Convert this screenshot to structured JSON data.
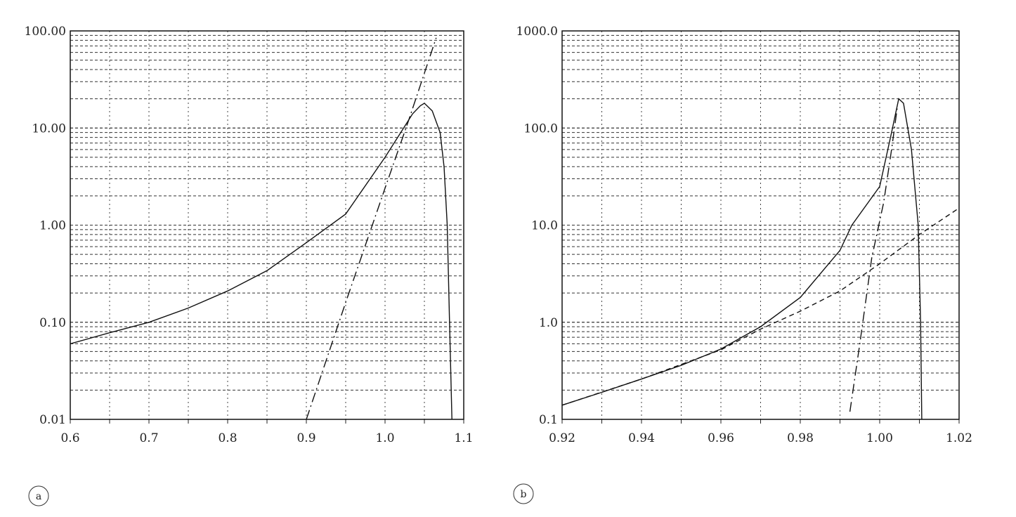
{
  "chart_data": [
    {
      "type": "line",
      "panel_label": "a",
      "yscale": "log",
      "xlim": [
        0.6,
        1.1
      ],
      "ylim": [
        0.01,
        100
      ],
      "xticks": [
        "0.6",
        "0.7",
        "0.8",
        "0.9",
        "1.0",
        "1.1"
      ],
      "xtick_values": [
        0.6,
        0.7,
        0.8,
        0.9,
        1.0,
        1.1
      ],
      "yticks": [
        "0.01",
        "0.10",
        "1.00",
        "10.00",
        "100.00"
      ],
      "ytick_values": [
        0.01,
        0.1,
        1,
        10,
        100
      ],
      "grid": true,
      "series": [
        {
          "name": "solid",
          "style": "solid",
          "x": [
            0.6,
            0.65,
            0.7,
            0.75,
            0.8,
            0.85,
            0.9,
            0.95,
            1.0,
            1.02,
            1.035,
            1.045,
            1.05,
            1.06,
            1.07,
            1.075,
            1.079,
            1.082,
            1.085
          ],
          "y": [
            0.06,
            0.078,
            0.1,
            0.14,
            0.21,
            0.34,
            0.66,
            1.3,
            5,
            9,
            14,
            17,
            18,
            15,
            9,
            4,
            1,
            0.1,
            0.01
          ]
        },
        {
          "name": "dash-dot",
          "style": "dashdot",
          "x": [
            0.9,
            0.95,
            1.0,
            1.03,
            1.065
          ],
          "y": [
            0.01,
            0.16,
            2.4,
            12,
            85
          ]
        }
      ]
    },
    {
      "type": "line",
      "panel_label": "b",
      "yscale": "log",
      "xlim": [
        0.92,
        1.02
      ],
      "ylim": [
        0.1,
        1000
      ],
      "xticks": [
        "0.92",
        "0.94",
        "0.96",
        "0.98",
        "1.00",
        "1.02"
      ],
      "xtick_values": [
        0.92,
        0.94,
        0.96,
        0.98,
        1.0,
        1.02
      ],
      "yticks": [
        "0.1",
        "1.0",
        "10.0",
        "100.0",
        "1000.0"
      ],
      "ytick_values": [
        0.1,
        1,
        10,
        100,
        1000
      ],
      "grid": true,
      "series": [
        {
          "name": "solid",
          "style": "solid",
          "x": [
            0.92,
            0.93,
            0.94,
            0.95,
            0.96,
            0.97,
            0.98,
            0.99,
            0.993,
            1.0,
            1.003,
            1.0048,
            1.006,
            1.008,
            1.0097,
            1.0103,
            1.0106
          ],
          "y": [
            0.14,
            0.19,
            0.26,
            0.36,
            0.53,
            0.9,
            1.8,
            5.5,
            10,
            25,
            90,
            200,
            180,
            60,
            10,
            1,
            0.1
          ]
        },
        {
          "name": "dashed",
          "style": "dashed",
          "x": [
            0.92,
            0.94,
            0.96,
            0.97,
            0.98,
            0.99,
            1.0,
            1.01,
            1.02
          ],
          "y": [
            0.14,
            0.26,
            0.52,
            0.85,
            1.3,
            2.1,
            4,
            8,
            15
          ]
        },
        {
          "name": "dash-dot",
          "style": "dashdot",
          "x": [
            0.9925,
            0.995,
            0.998,
            1.001,
            1.003,
            1.0045
          ],
          "y": [
            0.12,
            0.6,
            4.6,
            17,
            60,
            170
          ]
        }
      ]
    }
  ]
}
